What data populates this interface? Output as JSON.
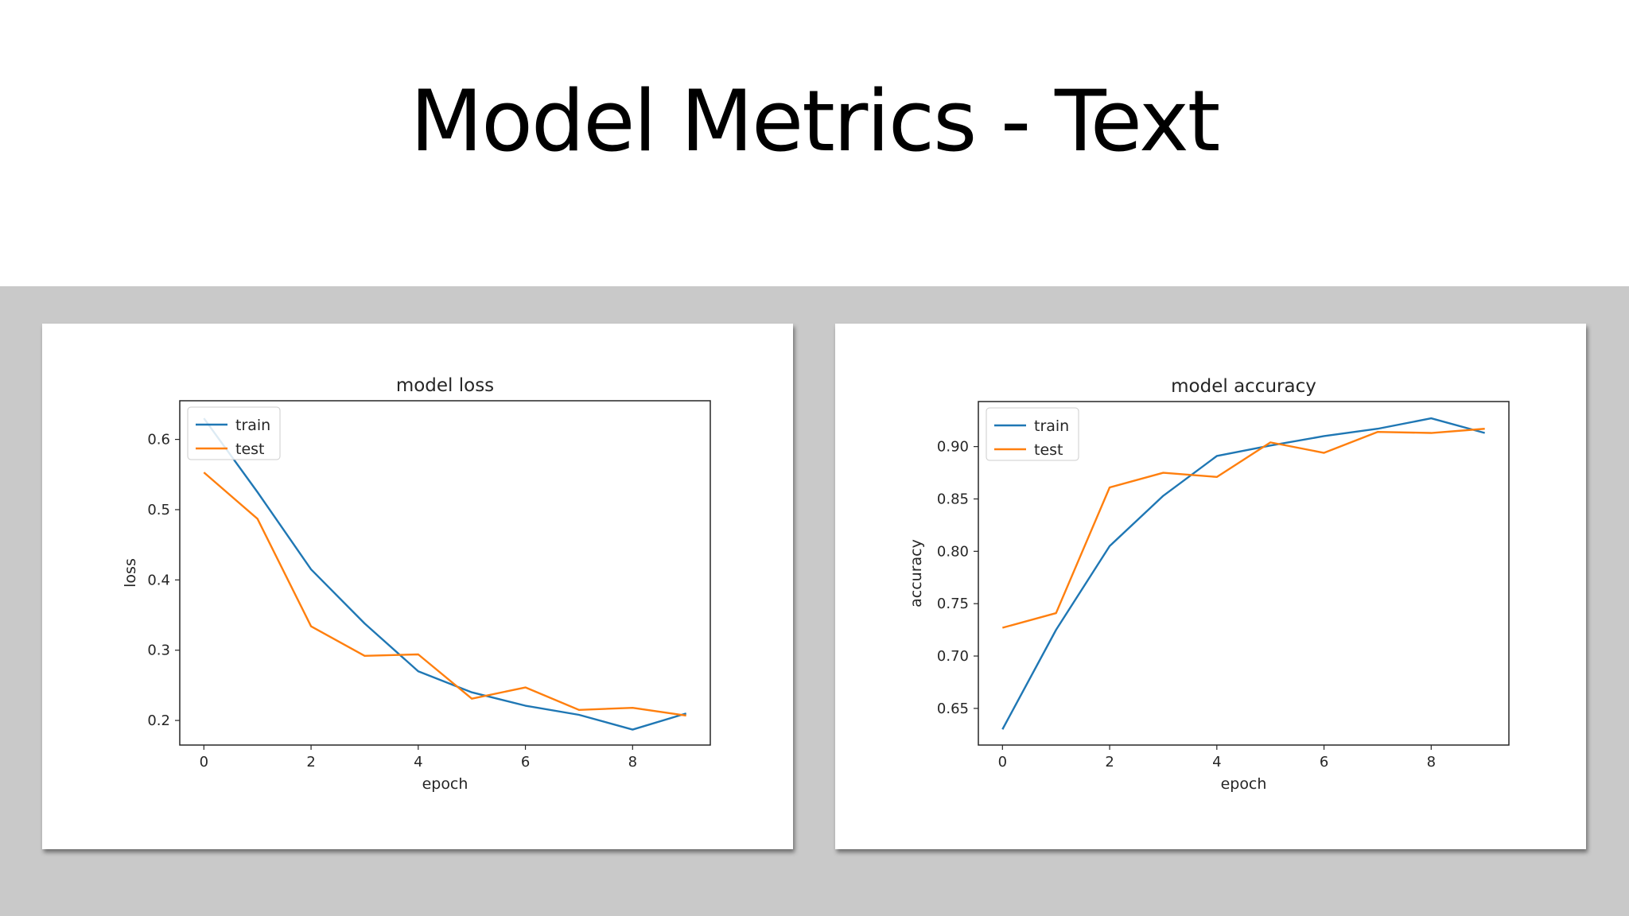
{
  "slide": {
    "title": "Model Metrics - Text"
  },
  "colors": {
    "train": "#1f77b4",
    "test": "#ff7f0e",
    "band": "#c9c9c9"
  },
  "chart_data": [
    {
      "type": "line",
      "title": "model loss",
      "xlabel": "epoch",
      "ylabel": "loss",
      "xlim": [
        -0.45,
        9.45
      ],
      "ylim": [
        0.165,
        0.655
      ],
      "xticks": [
        0,
        2,
        4,
        6,
        8
      ],
      "yticks": [
        0.2,
        0.3,
        0.4,
        0.5,
        0.6
      ],
      "ytick_labels": [
        "0.2",
        "0.3",
        "0.4",
        "0.5",
        "0.6"
      ],
      "grid": false,
      "legend": "upper-left",
      "x": [
        0,
        1,
        2,
        3,
        4,
        5,
        6,
        7,
        8,
        9
      ],
      "series": [
        {
          "name": "train",
          "values": [
            0.63,
            0.525,
            0.415,
            0.338,
            0.27,
            0.24,
            0.221,
            0.208,
            0.187,
            0.21
          ]
        },
        {
          "name": "test",
          "values": [
            0.553,
            0.487,
            0.334,
            0.292,
            0.294,
            0.231,
            0.247,
            0.215,
            0.218,
            0.207
          ]
        }
      ]
    },
    {
      "type": "line",
      "title": "model accuracy",
      "xlabel": "epoch",
      "ylabel": "accuracy",
      "xlim": [
        -0.45,
        9.45
      ],
      "ylim": [
        0.615,
        0.943
      ],
      "xticks": [
        0,
        2,
        4,
        6,
        8
      ],
      "yticks": [
        0.65,
        0.7,
        0.75,
        0.8,
        0.85,
        0.9
      ],
      "ytick_labels": [
        "0.65",
        "0.70",
        "0.75",
        "0.80",
        "0.85",
        "0.90"
      ],
      "grid": false,
      "legend": "upper-left",
      "x": [
        0,
        1,
        2,
        3,
        4,
        5,
        6,
        7,
        8,
        9
      ],
      "series": [
        {
          "name": "train",
          "values": [
            0.63,
            0.725,
            0.805,
            0.853,
            0.891,
            0.901,
            0.91,
            0.917,
            0.927,
            0.913
          ]
        },
        {
          "name": "test",
          "values": [
            0.727,
            0.741,
            0.861,
            0.875,
            0.871,
            0.904,
            0.894,
            0.914,
            0.913,
            0.917
          ]
        }
      ]
    }
  ]
}
